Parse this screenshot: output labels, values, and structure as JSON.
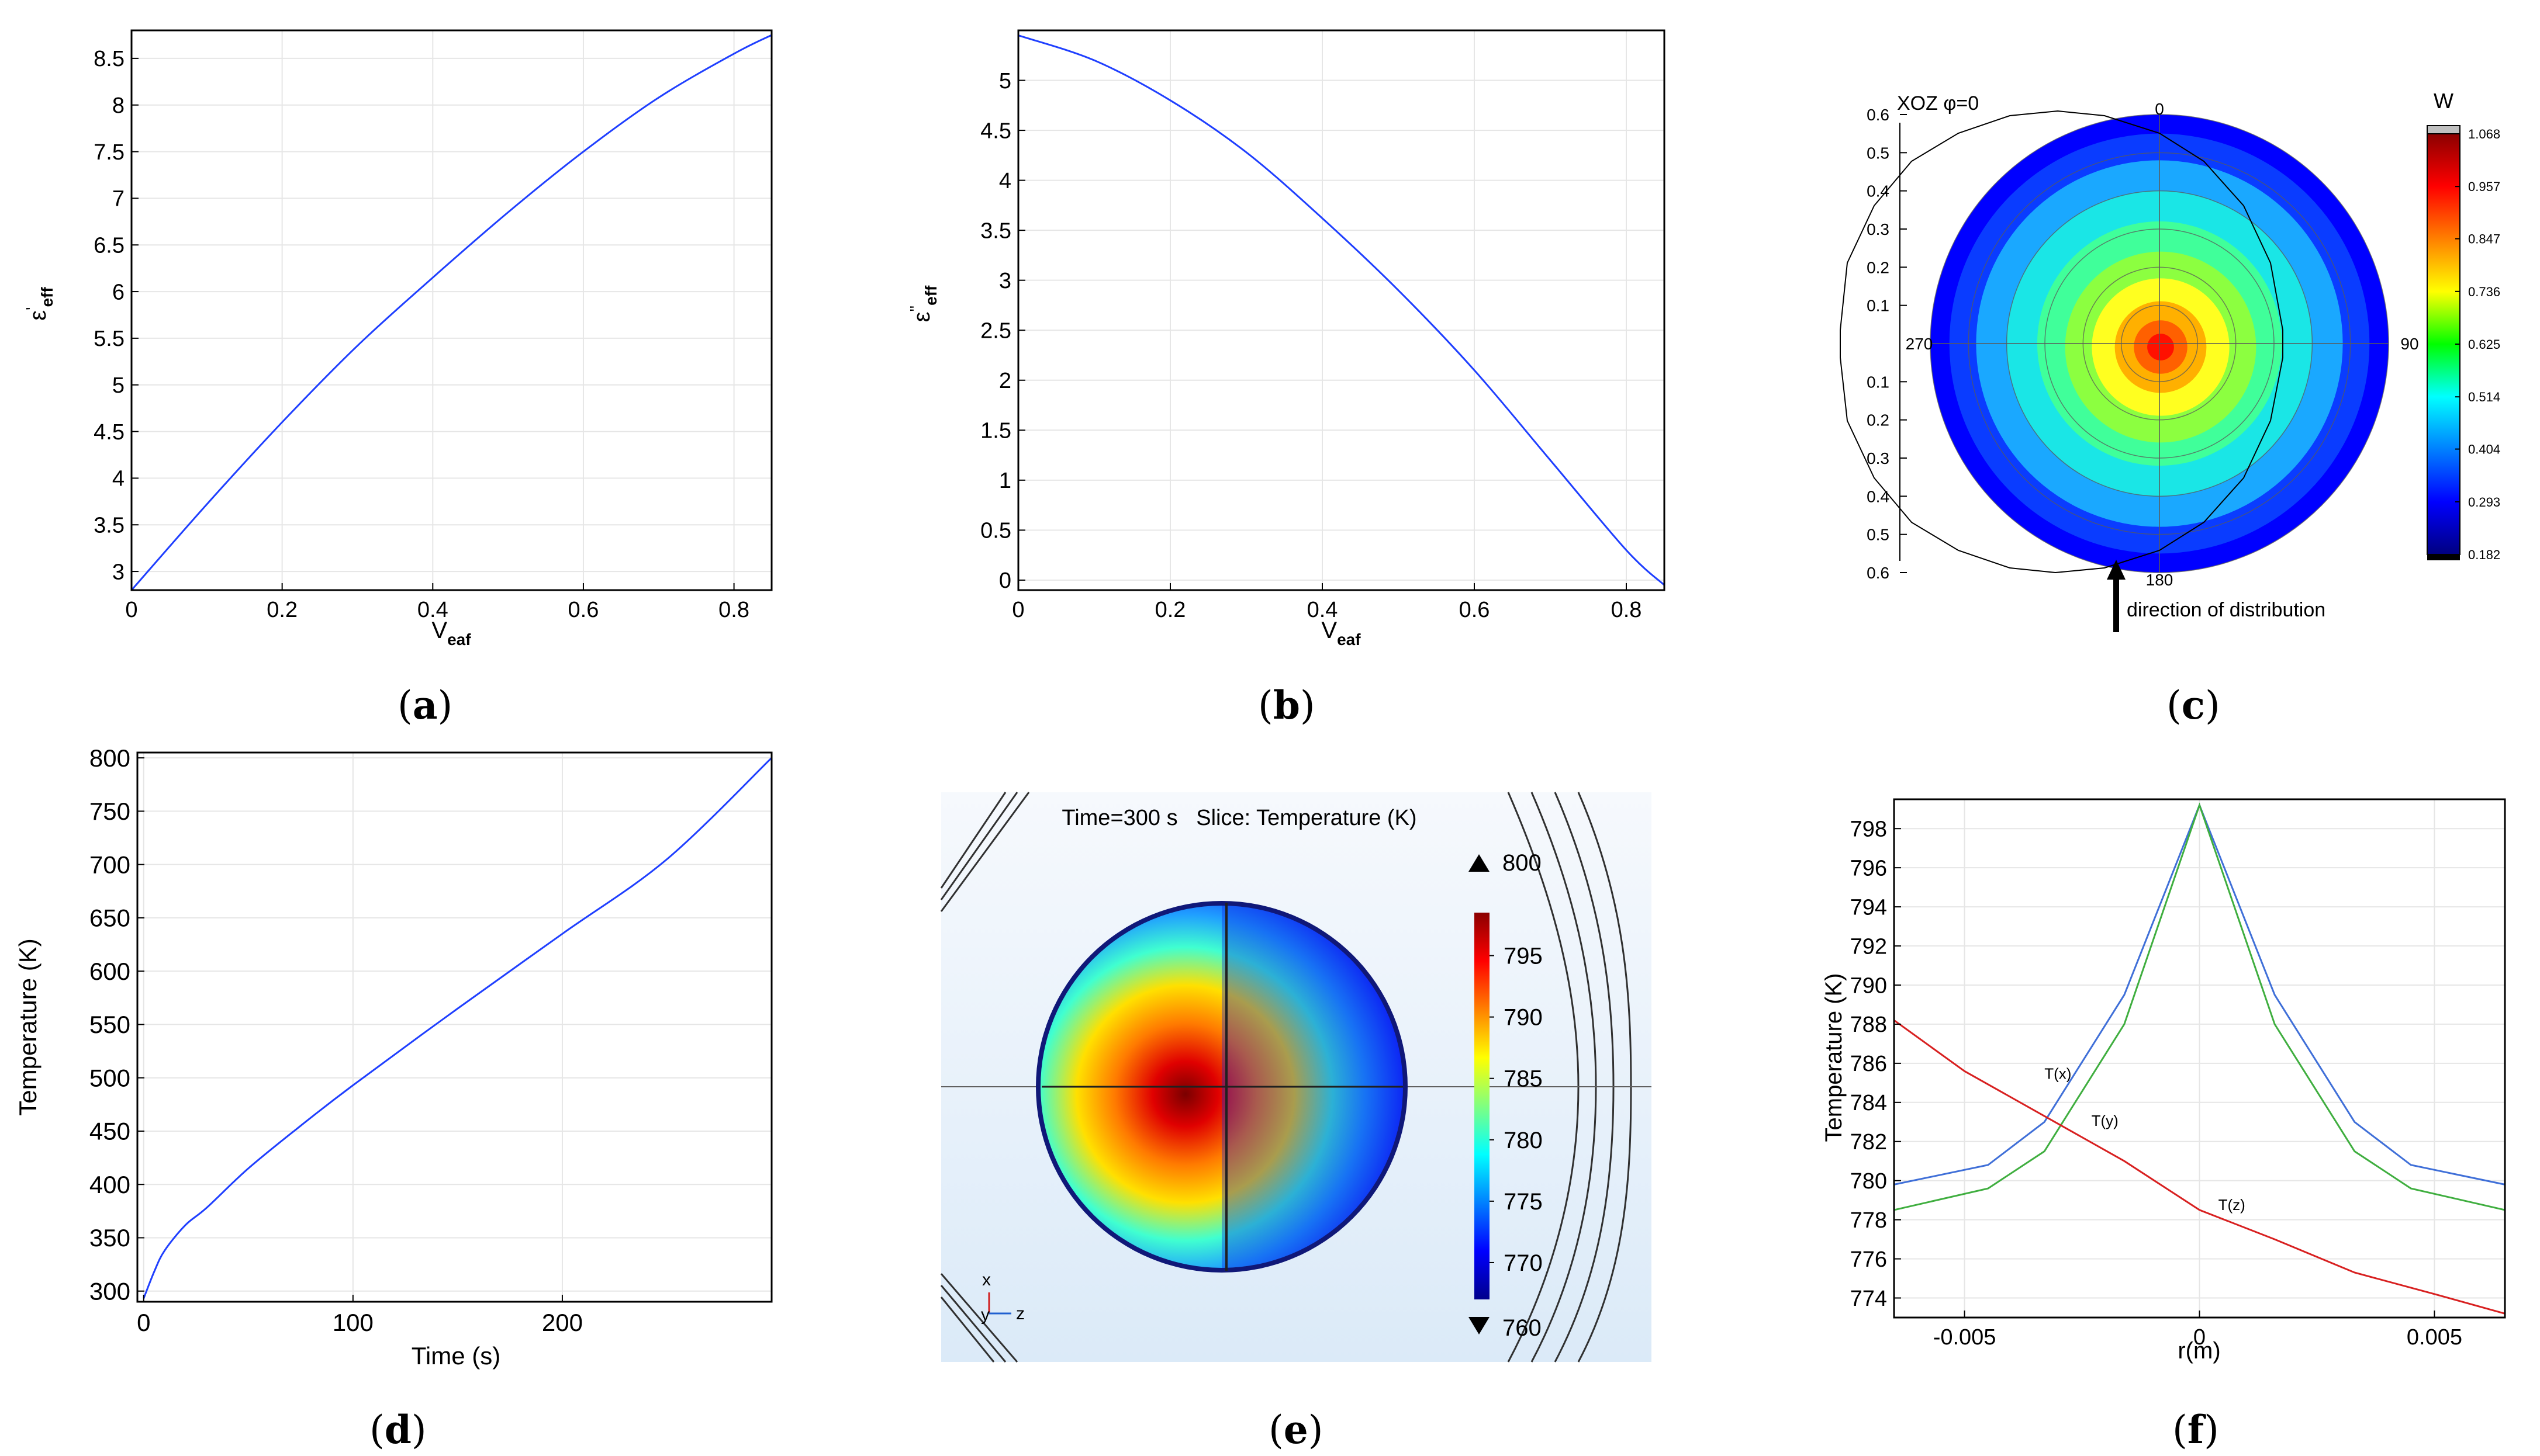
{
  "chart_data": [
    {
      "panel": "a",
      "type": "line",
      "caption": {
        "open": "(",
        "letter": "a",
        "close": ")"
      },
      "xlabel": {
        "main": "V",
        "sub": "eaf"
      },
      "ylabel": {
        "main": "ε",
        "sup": "'",
        "sub": "eff"
      },
      "xlim": [
        0,
        0.85
      ],
      "ylim": [
        2.8,
        8.8
      ],
      "xticks": [
        0,
        0.2,
        0.4,
        0.6,
        0.8
      ],
      "xtick_labels": [
        "0",
        "0.2",
        "0.4",
        "0.6",
        "0.8"
      ],
      "yticks": [
        3,
        3.5,
        4,
        4.5,
        5,
        5.5,
        6,
        6.5,
        7,
        7.5,
        8,
        8.5
      ],
      "ytick_labels": [
        "3",
        "3.5",
        "4",
        "4.5",
        "5",
        "5.5",
        "6",
        "6.5",
        "7",
        "7.5",
        "8",
        "8.5"
      ],
      "grid": true,
      "series": [
        {
          "name": "ε'eff",
          "color": "#1f3fff",
          "x": [
            0,
            0.1,
            0.2,
            0.3,
            0.4,
            0.5,
            0.6,
            0.7,
            0.8,
            0.85
          ],
          "y": [
            2.8,
            3.72,
            4.6,
            5.42,
            6.15,
            6.85,
            7.5,
            8.08,
            8.55,
            8.75
          ]
        }
      ]
    },
    {
      "panel": "b",
      "type": "line",
      "caption": {
        "open": "(",
        "letter": "b",
        "close": ")"
      },
      "xlabel": {
        "main": "V",
        "sub": "eaf"
      },
      "ylabel": {
        "main": "ε",
        "sup": "''",
        "sub": "eff"
      },
      "xlim": [
        0,
        0.85
      ],
      "ylim": [
        -0.1,
        5.5
      ],
      "xticks": [
        0,
        0.2,
        0.4,
        0.6,
        0.8
      ],
      "xtick_labels": [
        "0",
        "0.2",
        "0.4",
        "0.6",
        "0.8"
      ],
      "yticks": [
        0,
        0.5,
        1,
        1.5,
        2,
        2.5,
        3,
        3.5,
        4,
        4.5,
        5
      ],
      "ytick_labels": [
        "0",
        "0.5",
        "1",
        "1.5",
        "2",
        "2.5",
        "3",
        "3.5",
        "4",
        "4.5",
        "5"
      ],
      "grid": true,
      "series": [
        {
          "name": "ε''eff",
          "color": "#1f3fff",
          "x": [
            0,
            0.1,
            0.2,
            0.3,
            0.4,
            0.5,
            0.6,
            0.7,
            0.8,
            0.85
          ],
          "y": [
            5.45,
            5.2,
            4.8,
            4.28,
            3.62,
            2.9,
            2.1,
            1.2,
            0.3,
            -0.05
          ]
        }
      ]
    },
    {
      "panel": "c",
      "type": "heatmap",
      "caption": {
        "open": "(",
        "letter": "c",
        "close": ")"
      },
      "title": "XOZ φ=0",
      "colorbar_title": "W",
      "colorbar_ticks": [
        "1.068",
        "0.957",
        "0.847",
        "0.736",
        "0.625",
        "0.514",
        "0.404",
        "0.293",
        "0.182"
      ],
      "colorbar_range": [
        0.182,
        1.068
      ],
      "radial_tick_labels_top": [
        "0.6",
        "0.5",
        "0.4",
        "0.3",
        "0.2",
        "0.1"
      ],
      "radial_tick_labels_bottom": [
        "0.1",
        "0.2",
        "0.3",
        "0.4",
        "0.5",
        "0.6"
      ],
      "radial_max": 0.6,
      "angle_labels": {
        "top": "0",
        "right": "90",
        "bottom": "180",
        "left": "270"
      },
      "annotation": "direction of distribution",
      "colorbar_gradient": [
        "#8b0000",
        "#ff0000",
        "#ff8000",
        "#ffff00",
        "#00ff00",
        "#00ffff",
        "#0080ff",
        "#0000ff",
        "#000080"
      ],
      "field_rings": [
        {
          "r": 0.6,
          "color": "#0000ff"
        },
        {
          "r": 0.55,
          "color": "#0a3cff"
        },
        {
          "r": 0.48,
          "color": "#1aa8ff"
        },
        {
          "r": 0.4,
          "color": "#1ae6e6"
        },
        {
          "r": 0.32,
          "color": "#40ff9a"
        },
        {
          "r": 0.25,
          "color": "#8cff40"
        },
        {
          "r": 0.18,
          "color": "#ffff20"
        },
        {
          "r": 0.12,
          "color": "#ffb000"
        },
        {
          "r": 0.07,
          "color": "#ff6000"
        },
        {
          "r": 0.035,
          "color": "#ff1000"
        }
      ],
      "contour_radii": [
        0.1,
        0.2,
        0.3,
        0.4,
        0.5,
        0.6
      ]
    },
    {
      "panel": "d",
      "type": "line",
      "caption": {
        "open": "(",
        "letter": "d",
        "close": ")"
      },
      "xlabel": "Time (s)",
      "ylabel": "Temperature (K)",
      "xlim": [
        -3,
        300
      ],
      "ylim": [
        290,
        805
      ],
      "xticks": [
        0,
        100,
        200
      ],
      "xtick_labels": [
        "0",
        "100",
        "200"
      ],
      "yticks": [
        300,
        350,
        400,
        450,
        500,
        550,
        600,
        650,
        700,
        750,
        800
      ],
      "ytick_labels": [
        "300",
        "350",
        "400",
        "450",
        "500",
        "550",
        "600",
        "650",
        "700",
        "750",
        "800"
      ],
      "grid": true,
      "series": [
        {
          "name": "T",
          "color": "#1f3fff",
          "x": [
            0,
            5,
            10,
            20,
            30,
            50,
            75,
            100,
            150,
            200,
            250,
            300
          ],
          "y": [
            293,
            318,
            338,
            362,
            378,
            415,
            455,
            493,
            565,
            635,
            705,
            800
          ]
        }
      ]
    },
    {
      "panel": "e",
      "type": "heatmap",
      "caption": {
        "open": "(",
        "letter": "e",
        "close": ")"
      },
      "title": "Time=300 s   Slice: Temperature (K)",
      "colorbar_ticks": [
        "795",
        "790",
        "785",
        "780",
        "775",
        "770"
      ],
      "colorbar_range": [
        767,
        798.5
      ],
      "max_marker": "800",
      "min_marker": "760",
      "axis_labels": {
        "x": "x",
        "y": "y",
        "z": "z"
      },
      "colorbar_gradient": [
        "#8b0000",
        "#ff0000",
        "#ff8000",
        "#ffff00",
        "#80ff80",
        "#00ffff",
        "#0080ff",
        "#0000ff",
        "#00008b"
      ]
    },
    {
      "panel": "f",
      "type": "line",
      "caption": {
        "open": "(",
        "letter": "f",
        "close": ")"
      },
      "xlabel": "r(m)",
      "ylabel": "Temperature (K)",
      "xlim": [
        -0.0065,
        0.0065
      ],
      "ylim": [
        773,
        799.5
      ],
      "xticks": [
        -0.005,
        0,
        0.005
      ],
      "xtick_labels": [
        "-0.005",
        "0",
        "0.005"
      ],
      "yticks": [
        774,
        776,
        778,
        780,
        782,
        784,
        786,
        788,
        790,
        792,
        794,
        796,
        798
      ],
      "ytick_labels": [
        "774",
        "776",
        "778",
        "780",
        "782",
        "784",
        "786",
        "788",
        "790",
        "792",
        "794",
        "796",
        "798"
      ],
      "grid": true,
      "series": [
        {
          "name": "T(x)",
          "color": "#3f6fd8",
          "x": [
            -0.0065,
            -0.0045,
            -0.0033,
            -0.0016,
            0,
            0.0016,
            0.0033,
            0.0045,
            0.0065
          ],
          "y": [
            779.8,
            780.8,
            783.0,
            789.5,
            799.2,
            789.5,
            783.0,
            780.8,
            779.8
          ]
        },
        {
          "name": "T(y)",
          "color": "#3fae3f",
          "x": [
            -0.0065,
            -0.0045,
            -0.0033,
            -0.0016,
            0,
            0.0016,
            0.0033,
            0.0045,
            0.0065
          ],
          "y": [
            778.5,
            779.6,
            781.5,
            788.0,
            799.2,
            788.0,
            781.5,
            779.6,
            778.5
          ]
        },
        {
          "name": "T(z)",
          "color": "#d82020",
          "x": [
            -0.0065,
            -0.005,
            -0.0033,
            -0.0016,
            0,
            0.0016,
            0.0033,
            0.005,
            0.0065
          ],
          "y": [
            788.2,
            785.6,
            783.3,
            781.0,
            778.5,
            777.0,
            775.3,
            774.2,
            773.2
          ]
        }
      ],
      "series_labels": [
        {
          "text": "T(x)",
          "x": -0.0033,
          "y": 785.2
        },
        {
          "text": "T(y)",
          "x": -0.0023,
          "y": 782.8
        },
        {
          "text": "T(z)",
          "x": 0.0004,
          "y": 778.5
        }
      ]
    }
  ]
}
